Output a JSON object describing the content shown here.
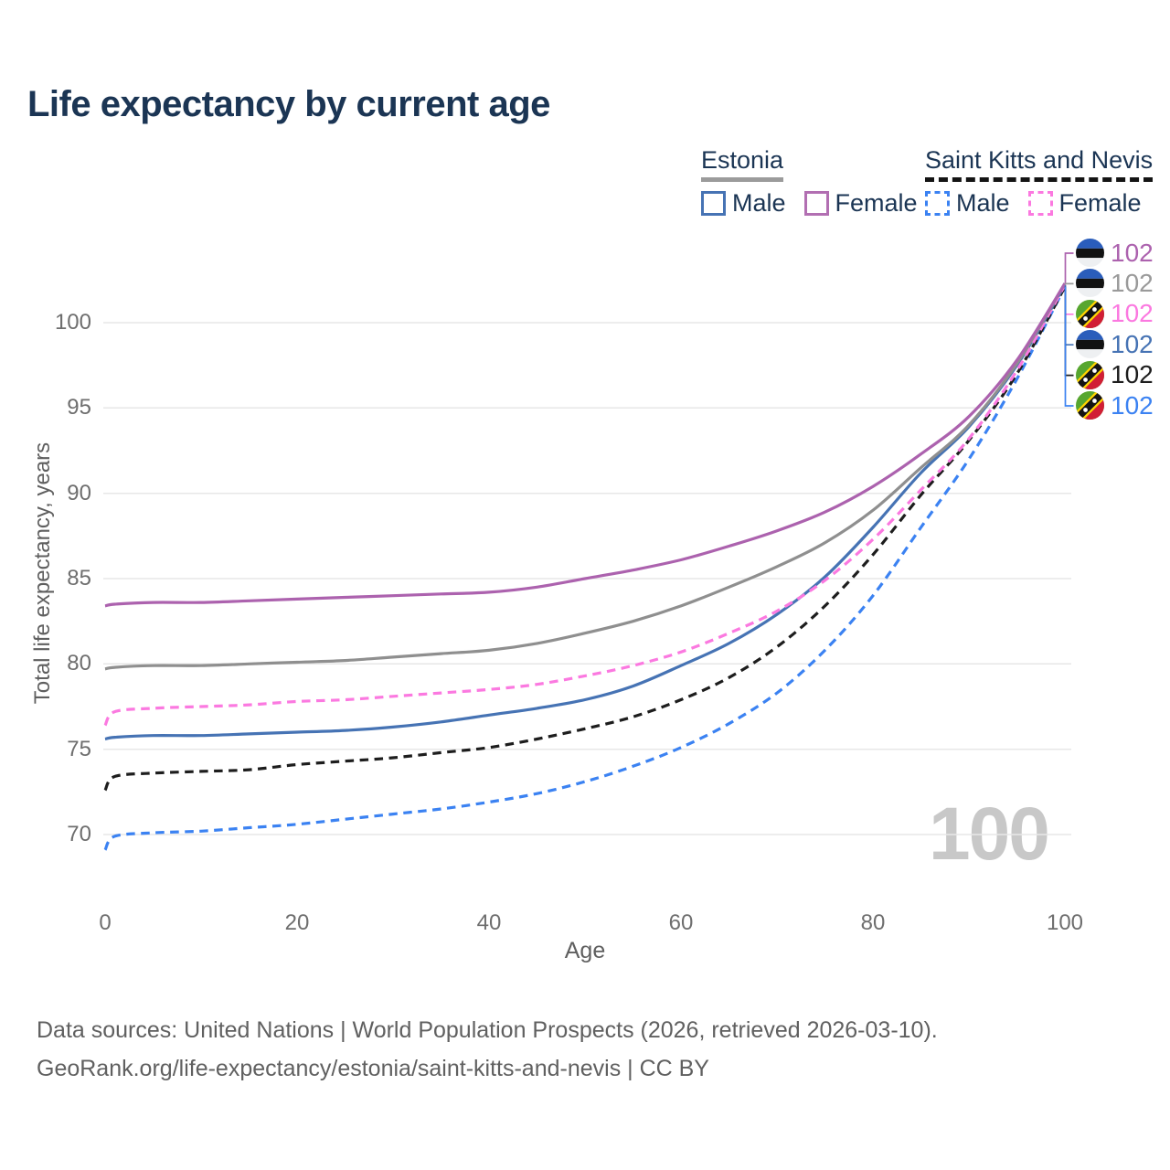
{
  "title": "Life expectancy by current age",
  "legend": {
    "groups": [
      {
        "name": "Estonia",
        "line_style": "solid",
        "underline_color": "#9b9b9b",
        "items": [
          {
            "label": "Male",
            "color": "#4673b4",
            "dashed": false
          },
          {
            "label": "Female",
            "color": "#b26fb2",
            "dashed": false
          }
        ]
      },
      {
        "name": "Saint Kitts and Nevis",
        "line_style": "dashed",
        "underline_color": "#141414",
        "items": [
          {
            "label": "Male",
            "color": "#3b82f2",
            "dashed": true
          },
          {
            "label": "Female",
            "color": "#fb79e0",
            "dashed": true
          }
        ]
      }
    ]
  },
  "y_axis": {
    "title": "Total life expectancy, years",
    "ticks": [
      100,
      95,
      90,
      85,
      80,
      75,
      70
    ]
  },
  "x_axis": {
    "title": "Age",
    "ticks": [
      0,
      20,
      40,
      60,
      80,
      100
    ]
  },
  "watermark": "100",
  "end_labels": [
    {
      "series": "Estonia Female",
      "value": "102",
      "flag": "estonia",
      "color": "#ac62ae"
    },
    {
      "series": "Estonia Both sexes",
      "value": "102",
      "flag": "estonia",
      "color": "#9a9a9a"
    },
    {
      "series": "Saint Kitts and Nevis Female",
      "value": "102",
      "flag": "saint-kitts-and-nevis",
      "color": "#fb79e0"
    },
    {
      "series": "Estonia Male",
      "value": "102",
      "flag": "estonia",
      "color": "#4673b4"
    },
    {
      "series": "Saint Kitts and Nevis Both sexes",
      "value": "102",
      "flag": "saint-kitts-and-nevis",
      "color": "#1d1d1d"
    },
    {
      "series": "Saint Kitts and Nevis Male",
      "value": "102",
      "flag": "saint-kitts-and-nevis",
      "color": "#3b82f2"
    }
  ],
  "footer": {
    "line1": "Data sources: United Nations | World Population Prospects (2026, retrieved 2026-03-10).",
    "line2": "GeoRank.org/life-expectancy/estonia/saint-kitts-and-nevis | CC BY"
  },
  "chart_data": {
    "type": "line",
    "title": "Life expectancy by current age",
    "xlabel": "Age",
    "ylabel": "Total life expectancy, years",
    "xlim": [
      0,
      100
    ],
    "ylim": [
      67,
      103
    ],
    "grid": true,
    "legend_position": "top-right",
    "x": [
      0,
      1,
      5,
      10,
      15,
      20,
      25,
      30,
      35,
      40,
      45,
      50,
      55,
      60,
      65,
      70,
      75,
      80,
      85,
      90,
      95,
      100
    ],
    "series": [
      {
        "name": "Estonia Female",
        "country": "Estonia",
        "sex": "Female",
        "color": "#ac62ae",
        "dash": false,
        "end_label": "102",
        "values": [
          83.4,
          83.5,
          83.6,
          83.6,
          83.7,
          83.8,
          83.9,
          84.0,
          84.1,
          84.2,
          84.5,
          85.0,
          85.5,
          86.1,
          86.9,
          87.8,
          88.9,
          90.4,
          92.3,
          94.5,
          97.8,
          102.3
        ]
      },
      {
        "name": "Estonia Both sexes",
        "country": "Estonia",
        "sex": "Both sexes",
        "color": "#8f8f8f",
        "dash": false,
        "end_label": "102",
        "values": [
          79.7,
          79.8,
          79.9,
          79.9,
          80.0,
          80.1,
          80.2,
          80.4,
          80.6,
          80.8,
          81.2,
          81.8,
          82.5,
          83.4,
          84.5,
          85.7,
          87.1,
          89.0,
          91.5,
          94.0,
          97.6,
          102.3
        ]
      },
      {
        "name": "Saint Kitts and Nevis Female",
        "country": "Saint Kitts and Nevis",
        "sex": "Female",
        "color": "#fb79e0",
        "dash": true,
        "end_label": "102",
        "values": [
          76.4,
          77.2,
          77.4,
          77.5,
          77.6,
          77.8,
          77.9,
          78.1,
          78.3,
          78.5,
          78.8,
          79.3,
          79.9,
          80.7,
          81.8,
          83.1,
          84.9,
          87.3,
          90.2,
          93.2,
          97.2,
          102.2
        ]
      },
      {
        "name": "Estonia Male",
        "country": "Estonia",
        "sex": "Male",
        "color": "#4673b4",
        "dash": false,
        "end_label": "102",
        "values": [
          75.6,
          75.7,
          75.8,
          75.8,
          75.9,
          76.0,
          76.1,
          76.3,
          76.6,
          77.0,
          77.4,
          77.9,
          78.7,
          79.9,
          81.2,
          82.9,
          85.1,
          88.0,
          91.2,
          93.9,
          97.5,
          102.2
        ]
      },
      {
        "name": "Saint Kitts and Nevis Both sexes",
        "country": "Saint Kitts and Nevis",
        "sex": "Both sexes",
        "color": "#1d1d1d",
        "dash": true,
        "end_label": "102",
        "values": [
          72.6,
          73.4,
          73.6,
          73.7,
          73.8,
          74.1,
          74.3,
          74.5,
          74.8,
          75.1,
          75.6,
          76.2,
          76.9,
          77.9,
          79.2,
          81.0,
          83.4,
          86.4,
          89.9,
          93.1,
          97.0,
          102.1
        ]
      },
      {
        "name": "Saint Kitts and Nevis Male",
        "country": "Saint Kitts and Nevis",
        "sex": "Male",
        "color": "#3b82f2",
        "dash": true,
        "end_label": "102",
        "values": [
          69.1,
          69.9,
          70.1,
          70.2,
          70.4,
          70.6,
          70.9,
          71.2,
          71.5,
          71.9,
          72.4,
          73.1,
          74.0,
          75.1,
          76.5,
          78.3,
          80.8,
          84.0,
          88.0,
          92.0,
          96.7,
          102.1
        ]
      }
    ]
  }
}
